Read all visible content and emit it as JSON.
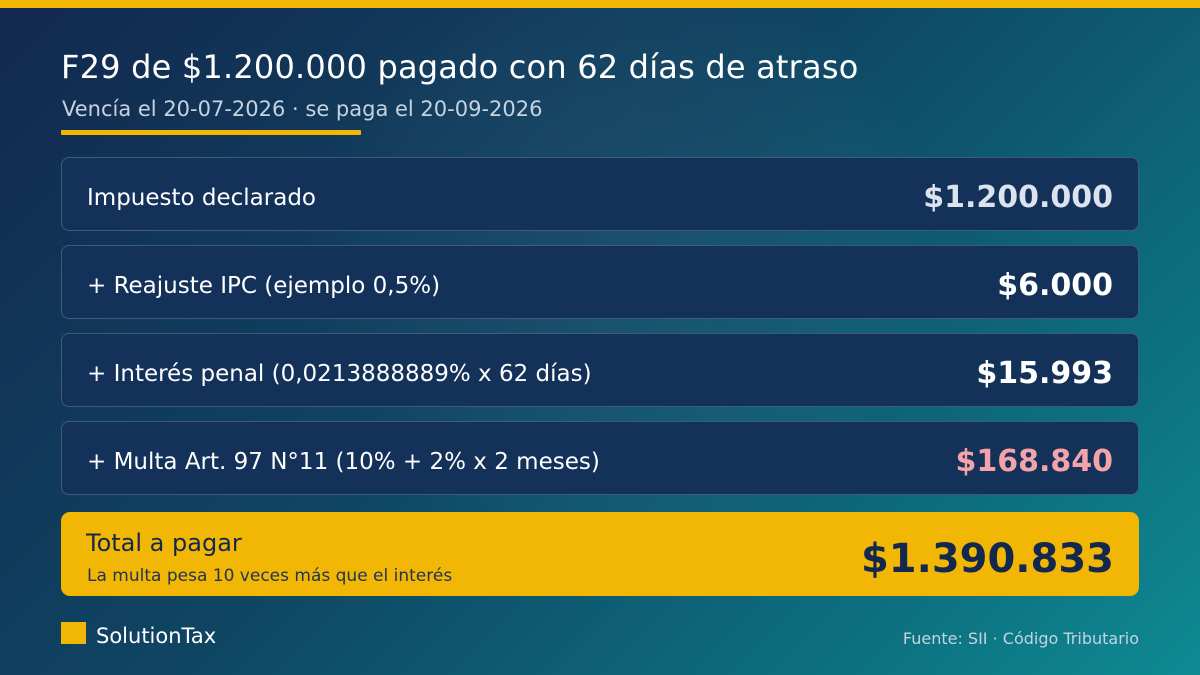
{
  "colors": {
    "accent": "#f2b705",
    "card_bg": "#14315a",
    "penalty_value": "#f4a4a8",
    "dark_text": "#13284e"
  },
  "header": {
    "title": "F29 de $1.200.000 pagado con 62 días de atraso",
    "subtitle": "Vencía el 20-07-2026 · se paga el 20-09-2026"
  },
  "rows": [
    {
      "label": "Impuesto declarado",
      "value": "$1.200.000"
    },
    {
      "label": "+ Reajuste IPC (ejemplo 0,5%)",
      "value": "$6.000"
    },
    {
      "label": "+ Interés penal (0,0213888889% x 62 días)",
      "value": "$15.993"
    },
    {
      "label": "+ Multa Art. 97 N°11 (10% + 2% x 2 meses)",
      "value": "$168.840"
    }
  ],
  "total": {
    "label": "Total a pagar",
    "note": "La multa pesa 10 veces más que el interés",
    "value": "$1.390.833"
  },
  "footer": {
    "brand": "SolutionTax",
    "source": "Fuente: SII · Código Tributario"
  }
}
